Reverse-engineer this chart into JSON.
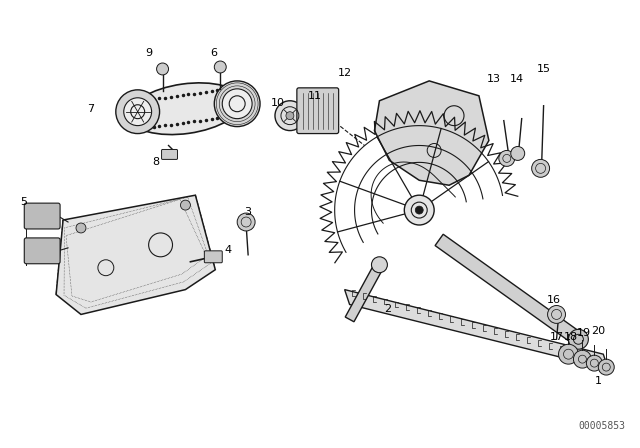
{
  "bg_color": "#ffffff",
  "line_color": "#1a1a1a",
  "fig_width": 6.4,
  "fig_height": 4.48,
  "dpi": 100,
  "watermark": "00005853",
  "title_color": "#000000"
}
